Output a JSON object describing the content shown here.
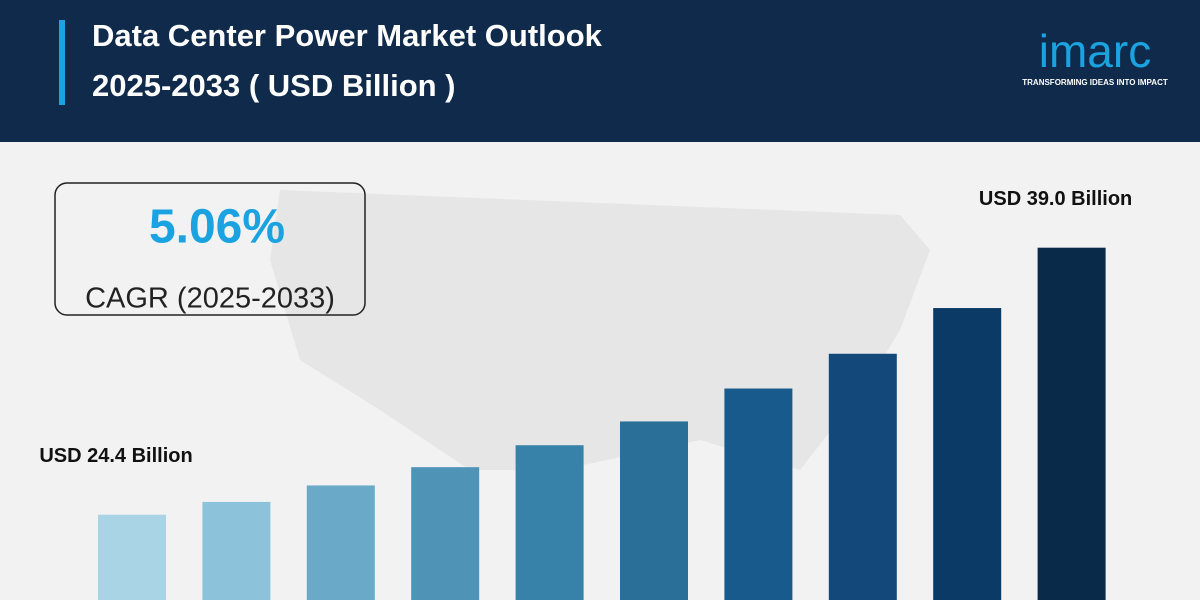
{
  "header": {
    "title_lines": [
      "Data Center Power Market Outlook",
      "2025-2033 ( USD Billion )"
    ],
    "logo": {
      "name": "imarc",
      "tagline": "TRANSFORMING IDEAS INTO IMPACT"
    }
  },
  "cagr": {
    "value": "5.06%",
    "label": "CAGR (2025-2033)"
  },
  "chart_data": {
    "type": "bar",
    "values": [
      24.4,
      25.1,
      26.0,
      27.0,
      28.2,
      29.5,
      31.3,
      33.2,
      35.7,
      39.0
    ],
    "value_labels": [
      "USD 24.4 Billion",
      null,
      null,
      null,
      null,
      null,
      null,
      null,
      null,
      "USD 39.0 Billion"
    ],
    "colors": [
      "#a9d4e6",
      "#8cc3da",
      "#6aaac8",
      "#4f94b6",
      "#3782a8",
      "#2a6f98",
      "#195a8c",
      "#12497a",
      "#0c3a66",
      "#0a2a4a"
    ]
  }
}
